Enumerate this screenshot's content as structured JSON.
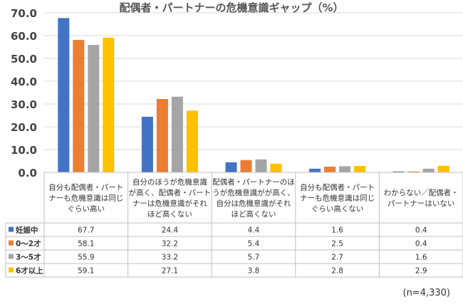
{
  "chart_data": {
    "type": "bar",
    "title": "配偶者・パートナーの危機意識ギャップ（%）",
    "ylim": [
      0,
      70
    ],
    "yticks": [
      "0.0",
      "10.0",
      "20.0",
      "30.0",
      "40.0",
      "50.0",
      "60.0",
      "70.0"
    ],
    "grid": true,
    "categories": [
      [
        "自分も配偶者・パート",
        "ナーも危機意識は同じ",
        "ぐらい高い"
      ],
      [
        "自分のほうが危機意識",
        "が高く、配偶者・パート",
        "ナーは危機意識がそれ",
        "ほど高くない"
      ],
      [
        "配偶者・パートナーのほ",
        "うが危機意識がが高く、",
        "自分は危機意識がそれ",
        "ほど高くない"
      ],
      [
        "自分も配偶者・パート",
        "ナーも危機意識は同じ",
        "ぐらい高くない"
      ],
      [
        "わからない／配偶者・",
        "パートナーはいない"
      ]
    ],
    "series": [
      {
        "name": "妊娠中",
        "color": "#4472c4",
        "values": [
          67.7,
          24.4,
          4.4,
          1.6,
          0.4
        ],
        "labels": [
          "67.7",
          "24.4",
          "4.4",
          "1.6",
          "0.4"
        ]
      },
      {
        "name": "0～2才",
        "color": "#ed7d31",
        "values": [
          58.1,
          32.2,
          5.4,
          2.5,
          0.4
        ],
        "labels": [
          "58.1",
          "32.2",
          "5.4",
          "2.5",
          "0.4"
        ]
      },
      {
        "name": "3～5才",
        "color": "#a5a5a5",
        "values": [
          55.9,
          33.2,
          5.7,
          2.7,
          1.6
        ],
        "labels": [
          "55.9",
          "33.2",
          "5.7",
          "2.7",
          "1.6"
        ]
      },
      {
        "name": "6才以上",
        "color": "#ffc000",
        "values": [
          59.1,
          27.1,
          3.8,
          2.8,
          2.9
        ],
        "labels": [
          "59.1",
          "27.1",
          "3.8",
          "2.8",
          "2.9"
        ]
      }
    ]
  },
  "footnote": "(n=4,330)"
}
